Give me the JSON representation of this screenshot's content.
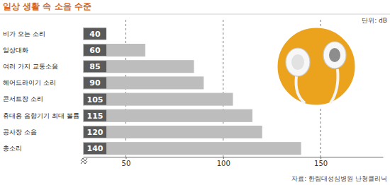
{
  "chart_data": {
    "type": "bar",
    "orientation": "horizontal",
    "title": "일상 생활 속 소음 수준",
    "annotations": [
      "단위: dB",
      "자료: 한림대성심병원 난청클리닉"
    ],
    "categories": [
      "비가 오는 소리",
      "일상대화",
      "여러 가지 교통소음",
      "헤어드라이기 소리",
      "콘서트장 소리",
      "휴대용 음향기기 최대 볼륨",
      "공사장 소음",
      "총소리"
    ],
    "values": [
      40,
      60,
      85,
      90,
      105,
      115,
      120,
      140
    ],
    "color": "#bdbdbd",
    "xlim": [
      28,
      182
    ],
    "xticks": [
      50,
      100,
      150
    ],
    "grid": true,
    "data_labels": true
  }
}
